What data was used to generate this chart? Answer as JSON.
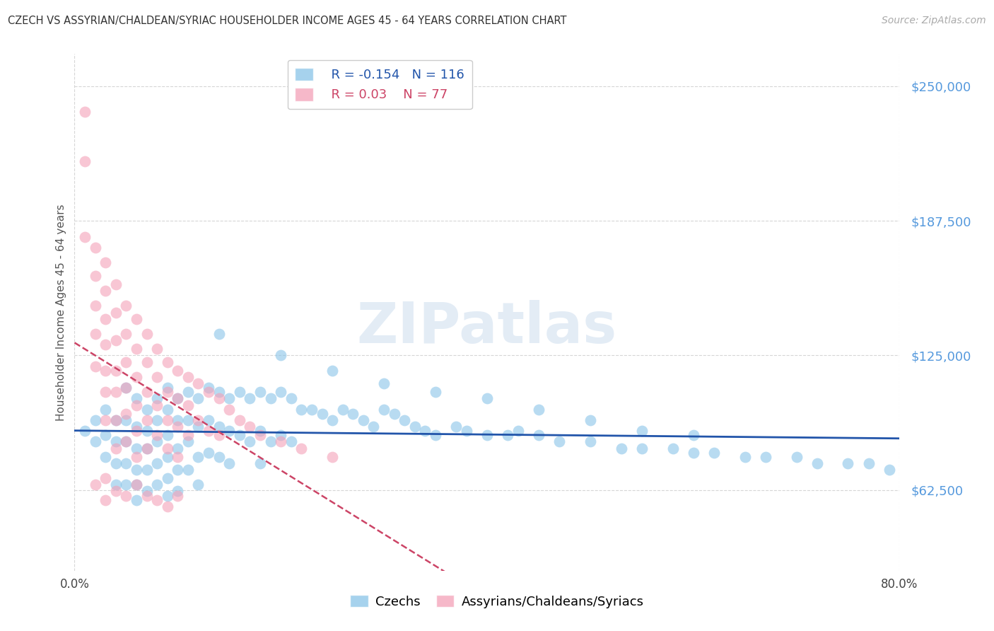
{
  "title": "CZECH VS ASSYRIAN/CHALDEAN/SYRIAC HOUSEHOLDER INCOME AGES 45 - 64 YEARS CORRELATION CHART",
  "source": "Source: ZipAtlas.com",
  "ylabel": "Householder Income Ages 45 - 64 years",
  "ytick_labels": [
    "$250,000",
    "$187,500",
    "$125,000",
    "$62,500"
  ],
  "ytick_values": [
    250000,
    187500,
    125000,
    62500
  ],
  "ylim": [
    25000,
    265000
  ],
  "xlim": [
    0.0,
    0.8
  ],
  "blue_color": "#89c4e8",
  "pink_color": "#f4a0b8",
  "trendline_blue_color": "#2255aa",
  "trendline_pink_color": "#cc4466",
  "watermark": "ZIPatlas",
  "background_color": "#ffffff",
  "grid_color": "#cccccc",
  "R_blue": -0.154,
  "N_blue": 116,
  "R_pink": 0.03,
  "N_pink": 77,
  "label_czechs": "Czechs",
  "label_assyrians": "Assyrians/Chaldeans/Syriacs",
  "blue_scatter_x": [
    0.01,
    0.02,
    0.02,
    0.03,
    0.03,
    0.03,
    0.04,
    0.04,
    0.04,
    0.04,
    0.05,
    0.05,
    0.05,
    0.05,
    0.05,
    0.06,
    0.06,
    0.06,
    0.06,
    0.06,
    0.06,
    0.07,
    0.07,
    0.07,
    0.07,
    0.07,
    0.08,
    0.08,
    0.08,
    0.08,
    0.08,
    0.09,
    0.09,
    0.09,
    0.09,
    0.09,
    0.09,
    0.1,
    0.1,
    0.1,
    0.1,
    0.1,
    0.11,
    0.11,
    0.11,
    0.11,
    0.12,
    0.12,
    0.12,
    0.12,
    0.13,
    0.13,
    0.13,
    0.14,
    0.14,
    0.14,
    0.15,
    0.15,
    0.15,
    0.16,
    0.16,
    0.17,
    0.17,
    0.18,
    0.18,
    0.18,
    0.19,
    0.19,
    0.2,
    0.2,
    0.21,
    0.21,
    0.22,
    0.23,
    0.24,
    0.25,
    0.26,
    0.27,
    0.28,
    0.29,
    0.3,
    0.31,
    0.32,
    0.33,
    0.34,
    0.35,
    0.37,
    0.38,
    0.4,
    0.42,
    0.43,
    0.45,
    0.47,
    0.5,
    0.53,
    0.55,
    0.58,
    0.6,
    0.62,
    0.65,
    0.67,
    0.7,
    0.72,
    0.75,
    0.77,
    0.79,
    0.14,
    0.2,
    0.25,
    0.3,
    0.35,
    0.4,
    0.45,
    0.5,
    0.55,
    0.6
  ],
  "blue_scatter_y": [
    90000,
    95000,
    85000,
    100000,
    88000,
    78000,
    95000,
    85000,
    75000,
    65000,
    110000,
    95000,
    85000,
    75000,
    65000,
    105000,
    92000,
    82000,
    72000,
    65000,
    58000,
    100000,
    90000,
    82000,
    72000,
    62000,
    105000,
    95000,
    85000,
    75000,
    65000,
    110000,
    100000,
    88000,
    78000,
    68000,
    60000,
    105000,
    95000,
    82000,
    72000,
    62000,
    108000,
    95000,
    85000,
    72000,
    105000,
    92000,
    78000,
    65000,
    110000,
    95000,
    80000,
    108000,
    92000,
    78000,
    105000,
    90000,
    75000,
    108000,
    88000,
    105000,
    85000,
    108000,
    90000,
    75000,
    105000,
    85000,
    108000,
    88000,
    105000,
    85000,
    100000,
    100000,
    98000,
    95000,
    100000,
    98000,
    95000,
    92000,
    100000,
    98000,
    95000,
    92000,
    90000,
    88000,
    92000,
    90000,
    88000,
    88000,
    90000,
    88000,
    85000,
    85000,
    82000,
    82000,
    82000,
    80000,
    80000,
    78000,
    78000,
    78000,
    75000,
    75000,
    75000,
    72000,
    135000,
    125000,
    118000,
    112000,
    108000,
    105000,
    100000,
    95000,
    90000,
    88000
  ],
  "pink_scatter_x": [
    0.01,
    0.01,
    0.01,
    0.02,
    0.02,
    0.02,
    0.02,
    0.02,
    0.03,
    0.03,
    0.03,
    0.03,
    0.03,
    0.03,
    0.03,
    0.04,
    0.04,
    0.04,
    0.04,
    0.04,
    0.04,
    0.04,
    0.05,
    0.05,
    0.05,
    0.05,
    0.05,
    0.05,
    0.06,
    0.06,
    0.06,
    0.06,
    0.06,
    0.06,
    0.07,
    0.07,
    0.07,
    0.07,
    0.07,
    0.08,
    0.08,
    0.08,
    0.08,
    0.09,
    0.09,
    0.09,
    0.09,
    0.1,
    0.1,
    0.1,
    0.1,
    0.11,
    0.11,
    0.11,
    0.12,
    0.12,
    0.13,
    0.13,
    0.14,
    0.14,
    0.15,
    0.16,
    0.17,
    0.18,
    0.2,
    0.22,
    0.25,
    0.02,
    0.03,
    0.03,
    0.04,
    0.05,
    0.06,
    0.07,
    0.08,
    0.09,
    0.1
  ],
  "pink_scatter_y": [
    238000,
    215000,
    180000,
    175000,
    162000,
    148000,
    135000,
    120000,
    168000,
    155000,
    142000,
    130000,
    118000,
    108000,
    95000,
    158000,
    145000,
    132000,
    118000,
    108000,
    95000,
    82000,
    148000,
    135000,
    122000,
    110000,
    98000,
    85000,
    142000,
    128000,
    115000,
    102000,
    90000,
    78000,
    135000,
    122000,
    108000,
    95000,
    82000,
    128000,
    115000,
    102000,
    88000,
    122000,
    108000,
    95000,
    82000,
    118000,
    105000,
    92000,
    78000,
    115000,
    102000,
    88000,
    112000,
    95000,
    108000,
    90000,
    105000,
    88000,
    100000,
    95000,
    92000,
    88000,
    85000,
    82000,
    78000,
    65000,
    68000,
    58000,
    62000,
    60000,
    65000,
    60000,
    58000,
    55000,
    60000
  ]
}
